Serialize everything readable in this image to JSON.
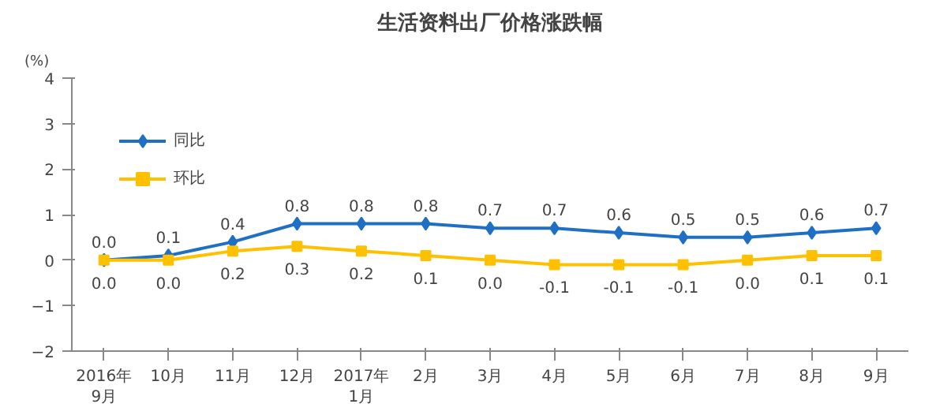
{
  "chart_data": {
    "type": "line",
    "title": "生活资料出厂价格涨跌幅",
    "ylabel": "(%)",
    "categories": [
      "2016年\n9月",
      "10月",
      "11月",
      "12月",
      "2017年\n1月",
      "2月",
      "3月",
      "4月",
      "5月",
      "6月",
      "7月",
      "8月",
      "9月"
    ],
    "series": [
      {
        "name": "同比",
        "color": "#1f6fc5",
        "marker": "diamond",
        "values": [
          0.0,
          0.1,
          0.4,
          0.8,
          0.8,
          0.8,
          0.7,
          0.7,
          0.6,
          0.5,
          0.5,
          0.6,
          0.7
        ],
        "value_labels": [
          "0.0",
          "0.1",
          "0.4",
          "0.8",
          "0.8",
          "0.8",
          "0.7",
          "0.7",
          "0.6",
          "0.5",
          "0.5",
          "0.6",
          "0.7"
        ]
      },
      {
        "name": "环比",
        "color": "#ffc000",
        "marker": "square",
        "values": [
          0.0,
          0.0,
          0.2,
          0.3,
          0.2,
          0.1,
          0.0,
          -0.1,
          -0.1,
          -0.1,
          0.0,
          0.1,
          0.1
        ],
        "value_labels": [
          "0.0",
          "0.0",
          "0.2",
          "0.3",
          "0.2",
          "0.1",
          "0.0",
          "-0.1",
          "-0.1",
          "-0.1",
          "0.0",
          "0.1",
          "0.1"
        ]
      }
    ],
    "ylim": [
      -2,
      4
    ],
    "yticks": [
      -2,
      -1,
      0,
      1,
      2,
      3,
      4
    ],
    "grid": false,
    "legend": "top left",
    "line_style": "solid"
  }
}
